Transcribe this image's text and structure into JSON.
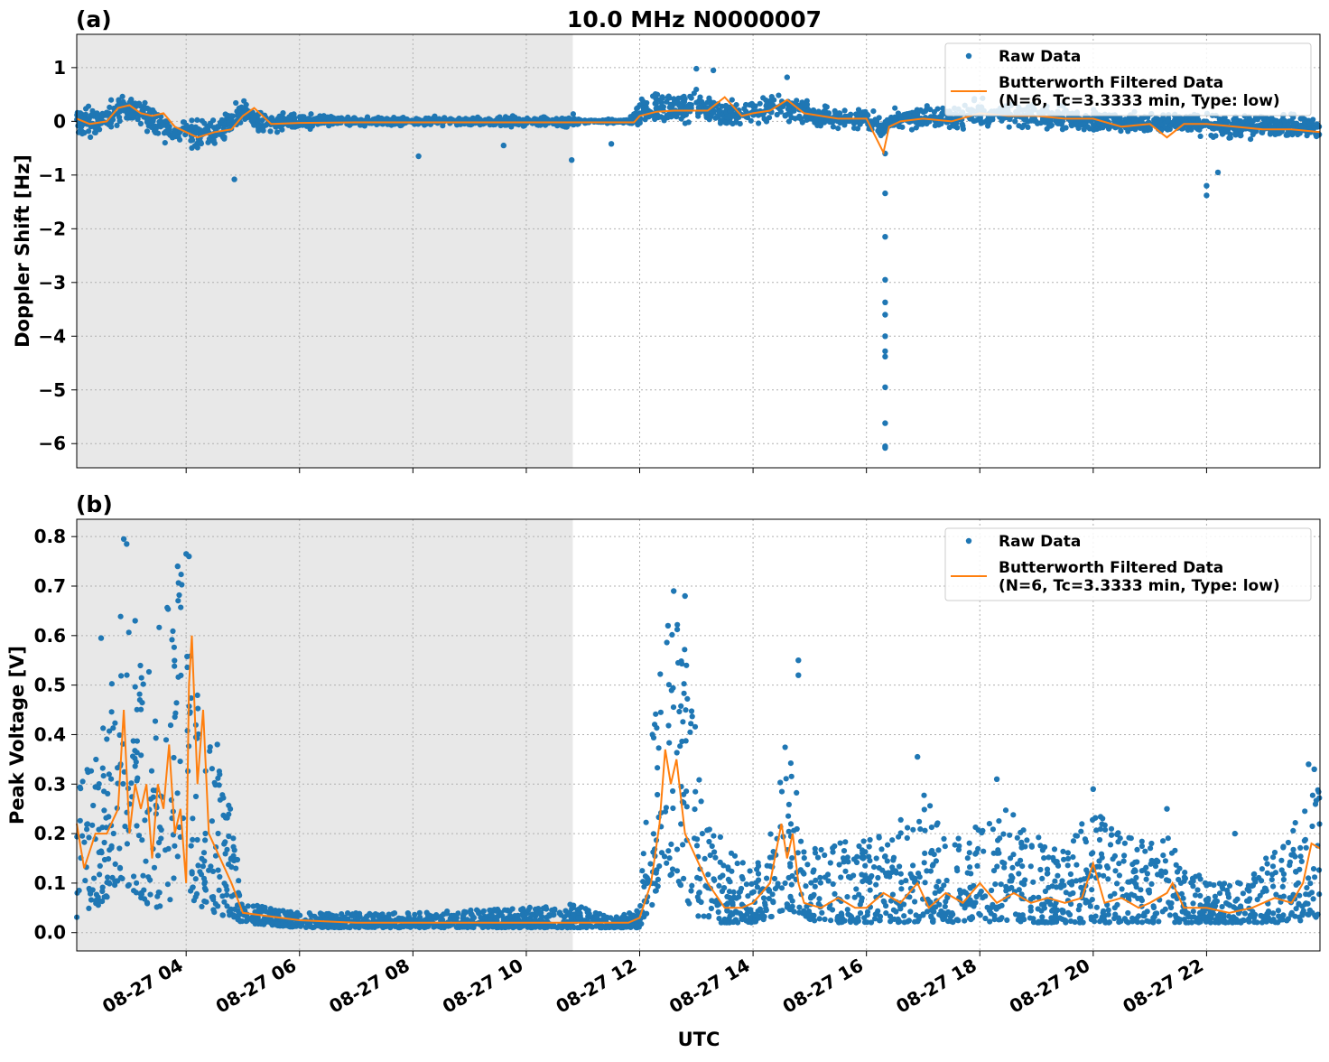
{
  "title": "10.0 MHz N0000007",
  "xlabel": "UTC",
  "colors": {
    "raw": "#1f77b4",
    "filtered": "#ff7f0e",
    "shade": "#e8e8e8"
  },
  "chart_data": [
    {
      "type": "scatter",
      "panel_label": "(a)",
      "ylabel": "Doppler Shift [Hz]",
      "xlim": [
        2.07,
        24.0
      ],
      "ylim": [
        -6.45,
        1.62
      ],
      "yticks": [
        1,
        0,
        -1,
        -2,
        -3,
        -4,
        -5,
        -6
      ],
      "ytick_labels": [
        "1",
        "0",
        "−1",
        "−2",
        "−3",
        "−4",
        "−5",
        "−6"
      ],
      "xticks": [
        4,
        6,
        8,
        10,
        12,
        14,
        16,
        18,
        20,
        22
      ],
      "xtick_labels": [
        "08-27 04",
        "08-27 06",
        "08-27 08",
        "08-27 10",
        "08-27 12",
        "08-27 14",
        "08-27 16",
        "08-27 18",
        "08-27 20",
        "08-27 22"
      ],
      "shaded_region": [
        2.07,
        10.82
      ],
      "grid": true,
      "legend_placement": "top-right",
      "legend": [
        "Raw Data",
        "Butterworth Filtered Data",
        "(N=6, Tc=3.3333 min, Type: low)"
      ],
      "series": [
        {
          "name": "Raw Data",
          "kind": "points",
          "envelope": {
            "x": [
              2.07,
              2.5,
              2.9,
              3.3,
              3.7,
              4.0,
              4.3,
              4.7,
              5.0,
              5.3,
              5.6,
              6.0,
              7.0,
              8.0,
              9.0,
              10.0,
              10.8,
              11.0,
              11.8,
              12.0,
              12.5,
              13.0,
              13.5,
              14.0,
              14.5,
              15.0,
              15.5,
              16.0,
              16.3,
              16.5,
              17.0,
              17.5,
              18.0,
              18.5,
              19.0,
              19.5,
              20.0,
              20.5,
              21.0,
              21.5,
              22.0,
              22.5,
              23.0,
              23.5,
              24.0
            ],
            "center": [
              0.05,
              -0.05,
              0.28,
              0.1,
              -0.2,
              -0.2,
              -0.25,
              -0.1,
              0.2,
              -0.05,
              -0.05,
              0.0,
              0.0,
              0.0,
              0.0,
              0.0,
              0.0,
              0.0,
              0.0,
              0.15,
              0.25,
              0.25,
              0.15,
              0.15,
              0.3,
              0.15,
              0.05,
              0.05,
              -0.15,
              0.05,
              0.05,
              0.05,
              0.15,
              0.15,
              0.1,
              0.05,
              0.0,
              0.0,
              -0.05,
              0.0,
              -0.05,
              -0.1,
              -0.05,
              -0.1,
              -0.15
            ],
            "spread": [
              0.3,
              0.3,
              0.3,
              0.3,
              0.3,
              0.3,
              0.3,
              0.3,
              0.3,
              0.25,
              0.2,
              0.15,
              0.08,
              0.08,
              0.08,
              0.1,
              0.15,
              0.04,
              0.04,
              0.3,
              0.3,
              0.3,
              0.25,
              0.25,
              0.3,
              0.25,
              0.2,
              0.2,
              0.2,
              0.2,
              0.2,
              0.25,
              0.25,
              0.25,
              0.25,
              0.25,
              0.2,
              0.2,
              0.2,
              0.2,
              0.25,
              0.25,
              0.25,
              0.25,
              0.25
            ]
          },
          "outliers": [
            [
              4.85,
              -1.08
            ],
            [
              8.1,
              -0.65
            ],
            [
              9.6,
              -0.45
            ],
            [
              10.8,
              -0.72
            ],
            [
              11.5,
              -0.42
            ],
            [
              13.0,
              0.98
            ],
            [
              13.3,
              0.95
            ],
            [
              14.6,
              0.82
            ],
            [
              16.33,
              -0.6
            ],
            [
              16.33,
              -1.34
            ],
            [
              16.33,
              -2.15
            ],
            [
              16.33,
              -2.95
            ],
            [
              16.33,
              -3.37
            ],
            [
              16.33,
              -3.6
            ],
            [
              16.33,
              -4.0
            ],
            [
              16.33,
              -4.28
            ],
            [
              16.33,
              -4.38
            ],
            [
              16.33,
              -4.95
            ],
            [
              16.33,
              -5.62
            ],
            [
              16.33,
              -6.05
            ],
            [
              16.33,
              -6.08
            ],
            [
              22.0,
              -1.38
            ],
            [
              22.0,
              -1.2
            ],
            [
              22.2,
              -0.95
            ]
          ]
        },
        {
          "name": "Butterworth Filtered Data",
          "kind": "line",
          "x": [
            2.07,
            2.3,
            2.6,
            2.8,
            3.0,
            3.2,
            3.4,
            3.6,
            3.8,
            4.0,
            4.2,
            4.5,
            4.8,
            5.0,
            5.2,
            5.5,
            6.0,
            7.0,
            8.0,
            9.0,
            10.0,
            11.0,
            11.9,
            12.0,
            12.3,
            12.6,
            12.9,
            13.2,
            13.5,
            13.8,
            14.0,
            14.3,
            14.6,
            14.9,
            15.2,
            15.5,
            15.8,
            16.0,
            16.3,
            16.4,
            16.6,
            17.0,
            17.5,
            18.0,
            18.5,
            19.0,
            19.5,
            20.0,
            20.5,
            21.0,
            21.3,
            21.6,
            22.0,
            22.5,
            23.0,
            23.5,
            24.0
          ],
          "y": [
            0.05,
            -0.05,
            0.0,
            0.25,
            0.3,
            0.15,
            0.1,
            0.15,
            -0.1,
            -0.2,
            -0.3,
            -0.2,
            -0.15,
            0.1,
            0.25,
            -0.05,
            -0.03,
            -0.02,
            -0.02,
            -0.02,
            -0.02,
            -0.02,
            -0.02,
            0.1,
            0.18,
            0.2,
            0.2,
            0.2,
            0.45,
            0.1,
            0.15,
            0.2,
            0.4,
            0.15,
            0.1,
            0.05,
            0.05,
            0.05,
            -0.58,
            -0.1,
            0.0,
            0.05,
            0.0,
            0.15,
            0.1,
            0.1,
            0.05,
            0.05,
            -0.1,
            -0.05,
            -0.3,
            -0.05,
            -0.05,
            -0.1,
            -0.15,
            -0.15,
            -0.2
          ]
        }
      ]
    },
    {
      "type": "scatter",
      "panel_label": "(b)",
      "ylabel": "Peak Voltage [V]",
      "xlim": [
        2.07,
        24.0
      ],
      "ylim": [
        -0.037,
        0.835
      ],
      "yticks": [
        0.0,
        0.1,
        0.2,
        0.3,
        0.4,
        0.5,
        0.6,
        0.7,
        0.8
      ],
      "ytick_labels": [
        "0.0",
        "0.1",
        "0.2",
        "0.3",
        "0.4",
        "0.5",
        "0.6",
        "0.7",
        "0.8"
      ],
      "xticks": [
        4,
        6,
        8,
        10,
        12,
        14,
        16,
        18,
        20,
        22
      ],
      "xtick_labels": [
        "08-27 04",
        "08-27 06",
        "08-27 08",
        "08-27 10",
        "08-27 12",
        "08-27 14",
        "08-27 16",
        "08-27 18",
        "08-27 20",
        "08-27 22"
      ],
      "shaded_region": [
        2.07,
        10.82
      ],
      "grid": true,
      "legend_placement": "top-right",
      "legend": [
        "Raw Data",
        "Butterworth Filtered Data",
        "(N=6, Tc=3.3333 min, Type: low)"
      ],
      "series": [
        {
          "name": "Raw Data",
          "kind": "points",
          "envelope": {
            "x": [
              2.07,
              2.3,
              2.6,
              2.9,
              3.1,
              3.4,
              3.7,
              4.0,
              4.2,
              4.5,
              4.8,
              5.0,
              6.0,
              8.0,
              10.0,
              10.8,
              11.5,
              12.0,
              12.2,
              12.45,
              12.7,
              12.9,
              13.1,
              13.5,
              14.0,
              14.3,
              14.6,
              14.9,
              15.2,
              15.6,
              16.0,
              16.5,
              17.0,
              17.5,
              18.0,
              18.5,
              19.0,
              19.5,
              20.0,
              20.5,
              21.0,
              21.3,
              21.6,
              22.0,
              22.5,
              23.0,
              23.5,
              24.0
            ],
            "low": [
              0.03,
              0.05,
              0.06,
              0.1,
              0.08,
              0.05,
              0.05,
              0.08,
              0.05,
              0.04,
              0.03,
              0.02,
              0.01,
              0.01,
              0.01,
              0.01,
              0.01,
              0.01,
              0.05,
              0.12,
              0.1,
              0.05,
              0.02,
              0.02,
              0.02,
              0.03,
              0.05,
              0.03,
              0.02,
              0.02,
              0.02,
              0.02,
              0.02,
              0.02,
              0.02,
              0.02,
              0.02,
              0.02,
              0.02,
              0.02,
              0.02,
              0.02,
              0.02,
              0.02,
              0.02,
              0.02,
              0.02,
              0.03
            ],
            "high": [
              0.4,
              0.35,
              0.45,
              0.7,
              0.55,
              0.6,
              0.7,
              0.75,
              0.5,
              0.38,
              0.25,
              0.06,
              0.04,
              0.04,
              0.05,
              0.06,
              0.03,
              0.05,
              0.4,
              0.6,
              0.65,
              0.5,
              0.3,
              0.18,
              0.12,
              0.2,
              0.45,
              0.2,
              0.18,
              0.2,
              0.2,
              0.22,
              0.28,
              0.2,
              0.22,
              0.25,
              0.2,
              0.2,
              0.25,
              0.2,
              0.18,
              0.2,
              0.15,
              0.1,
              0.1,
              0.15,
              0.22,
              0.3
            ]
          },
          "outliers": [
            [
              2.9,
              0.795
            ],
            [
              2.95,
              0.785
            ],
            [
              3.85,
              0.74
            ],
            [
              4.0,
              0.765
            ],
            [
              4.05,
              0.76
            ],
            [
              3.1,
              0.63
            ],
            [
              2.5,
              0.595
            ],
            [
              4.55,
              0.38
            ],
            [
              12.6,
              0.69
            ],
            [
              12.8,
              0.68
            ],
            [
              12.5,
              0.62
            ],
            [
              14.8,
              0.55
            ],
            [
              14.8,
              0.52
            ],
            [
              16.9,
              0.355
            ],
            [
              18.3,
              0.31
            ],
            [
              20.0,
              0.29
            ],
            [
              23.8,
              0.34
            ],
            [
              23.9,
              0.33
            ],
            [
              21.3,
              0.25
            ],
            [
              22.5,
              0.2
            ]
          ]
        },
        {
          "name": "Butterworth Filtered Data",
          "kind": "line",
          "x": [
            2.07,
            2.2,
            2.4,
            2.6,
            2.8,
            2.9,
            3.0,
            3.1,
            3.2,
            3.3,
            3.4,
            3.5,
            3.6,
            3.7,
            3.8,
            3.9,
            4.0,
            4.05,
            4.1,
            4.2,
            4.3,
            4.4,
            4.6,
            4.8,
            5.0,
            6.0,
            7.0,
            8.0,
            9.0,
            10.0,
            10.8,
            11.2,
            11.8,
            12.0,
            12.2,
            12.35,
            12.45,
            12.55,
            12.65,
            12.8,
            13.0,
            13.2,
            13.5,
            13.8,
            14.0,
            14.3,
            14.5,
            14.6,
            14.7,
            14.8,
            14.9,
            15.2,
            15.5,
            15.8,
            16.0,
            16.3,
            16.6,
            16.9,
            17.1,
            17.4,
            17.7,
            18.0,
            18.3,
            18.6,
            18.9,
            19.2,
            19.5,
            19.8,
            20.0,
            20.2,
            20.5,
            20.8,
            21.0,
            21.3,
            21.4,
            21.6,
            22.0,
            22.4,
            22.8,
            23.2,
            23.5,
            23.7,
            23.85,
            24.0
          ],
          "y": [
            0.22,
            0.13,
            0.2,
            0.2,
            0.25,
            0.45,
            0.2,
            0.3,
            0.25,
            0.3,
            0.15,
            0.3,
            0.25,
            0.38,
            0.2,
            0.25,
            0.1,
            0.5,
            0.6,
            0.3,
            0.45,
            0.2,
            0.15,
            0.1,
            0.04,
            0.025,
            0.02,
            0.02,
            0.02,
            0.02,
            0.02,
            0.02,
            0.02,
            0.03,
            0.1,
            0.22,
            0.37,
            0.3,
            0.35,
            0.2,
            0.15,
            0.1,
            0.05,
            0.05,
            0.06,
            0.1,
            0.22,
            0.15,
            0.2,
            0.1,
            0.06,
            0.05,
            0.07,
            0.05,
            0.05,
            0.08,
            0.06,
            0.1,
            0.05,
            0.08,
            0.06,
            0.1,
            0.06,
            0.08,
            0.06,
            0.07,
            0.06,
            0.07,
            0.14,
            0.06,
            0.07,
            0.05,
            0.06,
            0.08,
            0.1,
            0.05,
            0.05,
            0.04,
            0.05,
            0.07,
            0.06,
            0.1,
            0.18,
            0.17
          ]
        }
      ]
    }
  ]
}
